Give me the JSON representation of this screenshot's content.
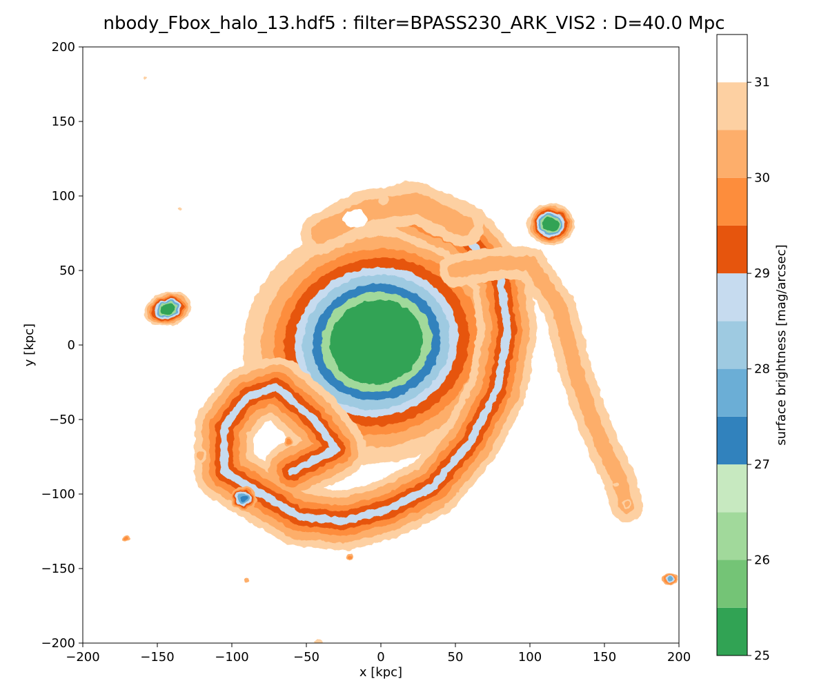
{
  "chart_data": {
    "type": "filled-contour",
    "title": "nbody_Fbox_halo_13.hdf5 : filter=BPASS230_ARK_VIS2 : D=40.0 Mpc",
    "xlabel": "x [kpc]",
    "ylabel": "y [kpc]",
    "xlim": [
      -200,
      200
    ],
    "ylim": [
      -200,
      200
    ],
    "xticks": [
      -200,
      -150,
      -100,
      -50,
      0,
      50,
      100,
      150,
      200
    ],
    "yticks": [
      -200,
      -150,
      -100,
      -50,
      0,
      50,
      100,
      150,
      200
    ],
    "xtick_labels": [
      "−200",
      "−150",
      "−100",
      "−50",
      "0",
      "50",
      "100",
      "150",
      "200"
    ],
    "ytick_labels": [
      "−200",
      "−150",
      "−100",
      "−50",
      "0",
      "50",
      "100",
      "150",
      "200"
    ],
    "grid": false,
    "colorbar": {
      "label": "surface brightness [mag/arcsec]",
      "min": 25,
      "max": 31.5,
      "tick_values": [
        25,
        26,
        27,
        28,
        29,
        30,
        31
      ],
      "tick_labels": [
        "25",
        "26",
        "27",
        "28",
        "29",
        "30",
        "31"
      ],
      "levels": [
        {
          "from": 25.0,
          "to": 25.5,
          "color": "#31a354"
        },
        {
          "from": 25.5,
          "to": 26.0,
          "color": "#74c476"
        },
        {
          "from": 26.0,
          "to": 26.5,
          "color": "#a1d99b"
        },
        {
          "from": 26.5,
          "to": 27.0,
          "color": "#c7e9c0"
        },
        {
          "from": 27.0,
          "to": 27.5,
          "color": "#3182bd"
        },
        {
          "from": 27.5,
          "to": 28.0,
          "color": "#6baed6"
        },
        {
          "from": 28.0,
          "to": 28.5,
          "color": "#9ecae1"
        },
        {
          "from": 28.5,
          "to": 29.0,
          "color": "#c6dbef"
        },
        {
          "from": 29.0,
          "to": 29.5,
          "color": "#e6550d"
        },
        {
          "from": 29.5,
          "to": 30.0,
          "color": "#fd8d3c"
        },
        {
          "from": 30.0,
          "to": 30.5,
          "color": "#fdae6b"
        },
        {
          "from": 30.5,
          "to": 31.0,
          "color": "#fdd0a2"
        },
        {
          "from": 31.0,
          "to": 31.5,
          "color": "#ffffff"
        }
      ]
    },
    "features": [
      {
        "name": "central-galaxy",
        "type": "ellipse",
        "cx": -3,
        "cy": 2,
        "rx": 60,
        "ry": 54,
        "rot": -15,
        "levels": [
          30.8,
          30.2,
          29.6,
          29.1,
          28.7,
          28.1,
          27.2,
          26.3,
          25.2
        ],
        "scales": [
          1.5,
          1.3,
          1.15,
          1.04,
          0.92,
          0.83,
          0.72,
          0.62,
          0.52
        ]
      },
      {
        "name": "tidal-stream",
        "type": "path",
        "levels": [
          30.8,
          30.2,
          29.6,
          29.1,
          28.7
        ],
        "widths": [
          40,
          30,
          20,
          12,
          5
        ],
        "points": [
          [
            20,
            90
          ],
          [
            55,
            75
          ],
          [
            80,
            45
          ],
          [
            85,
            10
          ],
          [
            78,
            -30
          ],
          [
            60,
            -65
          ],
          [
            35,
            -95
          ],
          [
            5,
            -110
          ],
          [
            -25,
            -118
          ],
          [
            -55,
            -115
          ],
          [
            -80,
            -100
          ],
          [
            -105,
            -85
          ],
          [
            -105,
            -55
          ],
          [
            -90,
            -35
          ],
          [
            -70,
            -28
          ],
          [
            -45,
            -50
          ],
          [
            -30,
            -70
          ],
          [
            -60,
            -85
          ]
        ]
      },
      {
        "name": "outer-arm",
        "type": "path",
        "levels": [
          30.8,
          30.2
        ],
        "widths": [
          22,
          10
        ],
        "points": [
          [
            50,
            50
          ],
          [
            80,
            55
          ],
          [
            100,
            55
          ],
          [
            120,
            25
          ],
          [
            130,
            -15
          ],
          [
            140,
            -45
          ],
          [
            150,
            -70
          ],
          [
            160,
            -90
          ],
          [
            165,
            -108
          ]
        ]
      },
      {
        "name": "upper-plume",
        "type": "path",
        "levels": [
          30.8,
          30.2
        ],
        "widths": [
          28,
          14
        ],
        "points": [
          [
            -40,
            75
          ],
          [
            -10,
            90
          ],
          [
            25,
            95
          ],
          [
            55,
            80
          ]
        ]
      },
      {
        "name": "north-cavity",
        "type": "ellipse",
        "cx": -17,
        "cy": 85,
        "rx": 8,
        "ry": 6,
        "rot": 0,
        "levels": [
          31.2
        ],
        "scales": [
          1
        ]
      },
      {
        "name": "satellite-ne",
        "type": "ellipse",
        "cx": 114,
        "cy": 81,
        "rx": 16,
        "ry": 14,
        "rot": 0,
        "levels": [
          30.8,
          30.2,
          29.6,
          29.1,
          28.7,
          27.7,
          26.3,
          25.2
        ],
        "scales": [
          1.0,
          0.88,
          0.78,
          0.7,
          0.6,
          0.5,
          0.42,
          0.34
        ]
      },
      {
        "name": "satellite-w",
        "type": "ellipse",
        "cx": -143,
        "cy": 24,
        "rx": 16,
        "ry": 11,
        "rot": -15,
        "levels": [
          30.8,
          30.2,
          29.6,
          29.1,
          28.7,
          27.7,
          26.3,
          25.2
        ],
        "scales": [
          1.0,
          0.88,
          0.78,
          0.7,
          0.6,
          0.5,
          0.42,
          0.34
        ]
      },
      {
        "name": "satellite-sw",
        "type": "ellipse",
        "cx": -92,
        "cy": -103,
        "rx": 9,
        "ry": 8,
        "rot": 0,
        "levels": [
          30.2,
          29.6,
          29.1,
          28.7,
          27.7,
          27.2
        ],
        "scales": [
          1.0,
          0.85,
          0.72,
          0.6,
          0.45,
          0.3
        ]
      },
      {
        "name": "satellite-se",
        "type": "ellipse",
        "cx": 194,
        "cy": -157,
        "rx": 5,
        "ry": 4,
        "rot": 0,
        "levels": [
          30.2,
          29.6,
          28.7,
          27.7
        ],
        "scales": [
          1.0,
          0.8,
          0.6,
          0.4
        ]
      },
      {
        "name": "blob-1",
        "type": "ellipse",
        "cx": -62,
        "cy": -65,
        "rx": 3,
        "ry": 3,
        "rot": 0,
        "levels": [
          30.2,
          29.6
        ],
        "scales": [
          1,
          0.6
        ]
      },
      {
        "name": "blob-2",
        "type": "ellipse",
        "cx": -121,
        "cy": -74,
        "rx": 4,
        "ry": 5,
        "rot": 0,
        "levels": [
          30.8,
          30.2
        ],
        "scales": [
          1,
          0.6
        ]
      },
      {
        "name": "blob-3",
        "type": "ellipse",
        "cx": -171,
        "cy": -130,
        "rx": 3,
        "ry": 2,
        "rot": 0,
        "levels": [
          30.2,
          29.6
        ],
        "scales": [
          1,
          0.6
        ]
      },
      {
        "name": "blob-4",
        "type": "ellipse",
        "cx": -21,
        "cy": -142,
        "rx": 2.5,
        "ry": 2.5,
        "rot": 0,
        "levels": [
          30.2,
          29.6
        ],
        "scales": [
          1,
          0.6
        ]
      },
      {
        "name": "blob-5",
        "type": "ellipse",
        "cx": -90,
        "cy": -158,
        "rx": 2,
        "ry": 1.5,
        "rot": 0,
        "levels": [
          30.2
        ],
        "scales": [
          1
        ]
      },
      {
        "name": "blob-6",
        "type": "ellipse",
        "cx": -42,
        "cy": -199,
        "rx": 3,
        "ry": 1.5,
        "rot": 0,
        "levels": [
          30.8
        ],
        "scales": [
          1
        ]
      },
      {
        "name": "blob-7",
        "type": "ellipse",
        "cx": 165,
        "cy": -107,
        "rx": 3,
        "ry": 3,
        "rot": 0,
        "levels": [
          30.8,
          30.2
        ],
        "scales": [
          1,
          0.6
        ]
      },
      {
        "name": "blob-8",
        "type": "ellipse",
        "cx": 2,
        "cy": 97,
        "rx": 3,
        "ry": 3,
        "rot": 0,
        "levels": [
          30.8
        ],
        "scales": [
          1
        ]
      },
      {
        "name": "blob-9",
        "type": "ellipse",
        "cx": -158,
        "cy": 179,
        "rx": 1,
        "ry": 1,
        "rot": 0,
        "levels": [
          30.8
        ],
        "scales": [
          1
        ]
      },
      {
        "name": "blob-10",
        "type": "ellipse",
        "cx": -135,
        "cy": 91,
        "rx": 1,
        "ry": 1,
        "rot": 0,
        "levels": [
          30.8
        ],
        "scales": [
          1
        ]
      },
      {
        "name": "blob-11",
        "type": "ellipse",
        "cx": 158,
        "cy": -94,
        "rx": 2,
        "ry": 1.5,
        "rot": 0,
        "levels": [
          30.8
        ],
        "scales": [
          1
        ]
      }
    ]
  }
}
